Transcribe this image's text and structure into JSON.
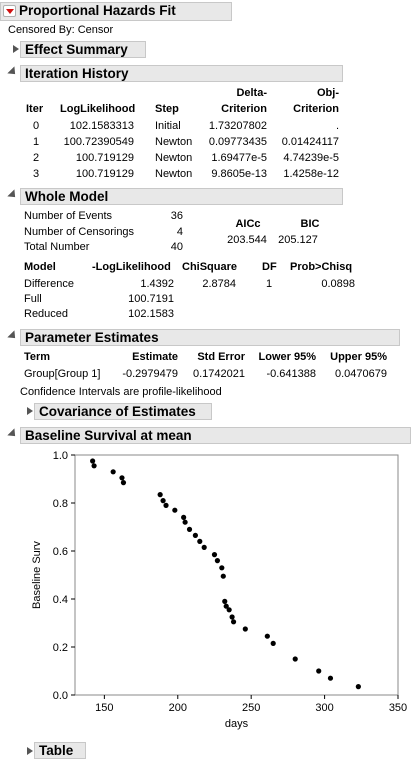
{
  "report": {
    "title": "Proportional Hazards Fit",
    "censored_by": "Censored By: Censor"
  },
  "effect_summary": {
    "title": "Effect Summary"
  },
  "iteration_history": {
    "title": "Iteration History",
    "headers": {
      "iter": "Iter",
      "loglik": "LogLikelihood",
      "step": "Step",
      "delta_top": "Delta-",
      "delta_bottom": "Criterion",
      "obj_top": "Obj-",
      "obj_bottom": "Criterion"
    },
    "rows": [
      {
        "iter": "0",
        "loglik": "102.1583313",
        "step": "Initial",
        "delta": "1.73207802",
        "obj": "."
      },
      {
        "iter": "1",
        "loglik": "100.72390549",
        "step": "Newton",
        "delta": "0.09773435",
        "obj": "0.01424117"
      },
      {
        "iter": "2",
        "loglik": "100.719129",
        "step": "Newton",
        "delta": "1.69477e-5",
        "obj": "4.74239e-5"
      },
      {
        "iter": "3",
        "loglik": "100.719129",
        "step": "Newton",
        "delta": "9.8605e-13",
        "obj": "1.4258e-12"
      }
    ]
  },
  "whole_model": {
    "title": "Whole Model",
    "counts": [
      {
        "label": "Number of Events",
        "value": "36"
      },
      {
        "label": "Number of Censorings",
        "value": "4"
      },
      {
        "label": "Total Number",
        "value": "40"
      }
    ],
    "aicc_label": "AICc",
    "bic_label": "BIC",
    "aicc": "203.544",
    "bic": "205.127",
    "headers": {
      "model": "Model",
      "loglik": "-LogLikelihood",
      "chisq": "ChiSquare",
      "df": "DF",
      "prob": "Prob>Chisq"
    },
    "rows": [
      {
        "model": "Difference",
        "loglik": "1.4392",
        "chisq": "2.8784",
        "df": "1",
        "prob": "0.0898"
      },
      {
        "model": "Full",
        "loglik": "100.7191",
        "chisq": "",
        "df": "",
        "prob": ""
      },
      {
        "model": "Reduced",
        "loglik": "102.1583",
        "chisq": "",
        "df": "",
        "prob": ""
      }
    ]
  },
  "parameter_estimates": {
    "title": "Parameter Estimates",
    "headers": {
      "term": "Term",
      "estimate": "Estimate",
      "stderr": "Std Error",
      "lower": "Lower 95%",
      "upper": "Upper 95%"
    },
    "row": {
      "term": "Group[Group 1]",
      "estimate": "-0.2979479",
      "stderr": "0.1742021",
      "lower": "-0.641388",
      "upper": "0.0470679"
    },
    "note": "Confidence Intervals are profile-likelihood",
    "covariance_title": "Covariance of Estimates"
  },
  "baseline": {
    "title": "Baseline Survival at mean"
  },
  "table": {
    "title": "Table"
  },
  "colors": {
    "header_bg": "#e8e8e8",
    "red_button": "#d01010",
    "points": "#000000"
  },
  "chart_data": {
    "type": "scatter",
    "title": "",
    "xlabel": "days",
    "ylabel": "Baseline Surv",
    "xlim": [
      130,
      350
    ],
    "ylim": [
      0,
      1.0
    ],
    "xticks": [
      "150",
      "200",
      "250",
      "300",
      "350"
    ],
    "xtick_values": [
      150,
      200,
      250,
      300,
      350
    ],
    "yticks": [
      "0.0",
      "0.2",
      "0.4",
      "0.6",
      "0.8",
      "1.0"
    ],
    "ytick_values": [
      0,
      0.2,
      0.4,
      0.6,
      0.8,
      1.0
    ],
    "grid": false,
    "points": [
      [
        142,
        0.975
      ],
      [
        143,
        0.955
      ],
      [
        156,
        0.93
      ],
      [
        162,
        0.905
      ],
      [
        163,
        0.885
      ],
      [
        188,
        0.835
      ],
      [
        190,
        0.81
      ],
      [
        192,
        0.79
      ],
      [
        198,
        0.77
      ],
      [
        204,
        0.74
      ],
      [
        205,
        0.72
      ],
      [
        208,
        0.69
      ],
      [
        212,
        0.665
      ],
      [
        215,
        0.64
      ],
      [
        218,
        0.615
      ],
      [
        225,
        0.585
      ],
      [
        227,
        0.56
      ],
      [
        230,
        0.53
      ],
      [
        231,
        0.495
      ],
      [
        232,
        0.39
      ],
      [
        233,
        0.37
      ],
      [
        235,
        0.355
      ],
      [
        237,
        0.325
      ],
      [
        238,
        0.305
      ],
      [
        246,
        0.275
      ],
      [
        261,
        0.245
      ],
      [
        265,
        0.215
      ],
      [
        280,
        0.15
      ],
      [
        296,
        0.1
      ],
      [
        304,
        0.07
      ],
      [
        323,
        0.035
      ]
    ]
  }
}
